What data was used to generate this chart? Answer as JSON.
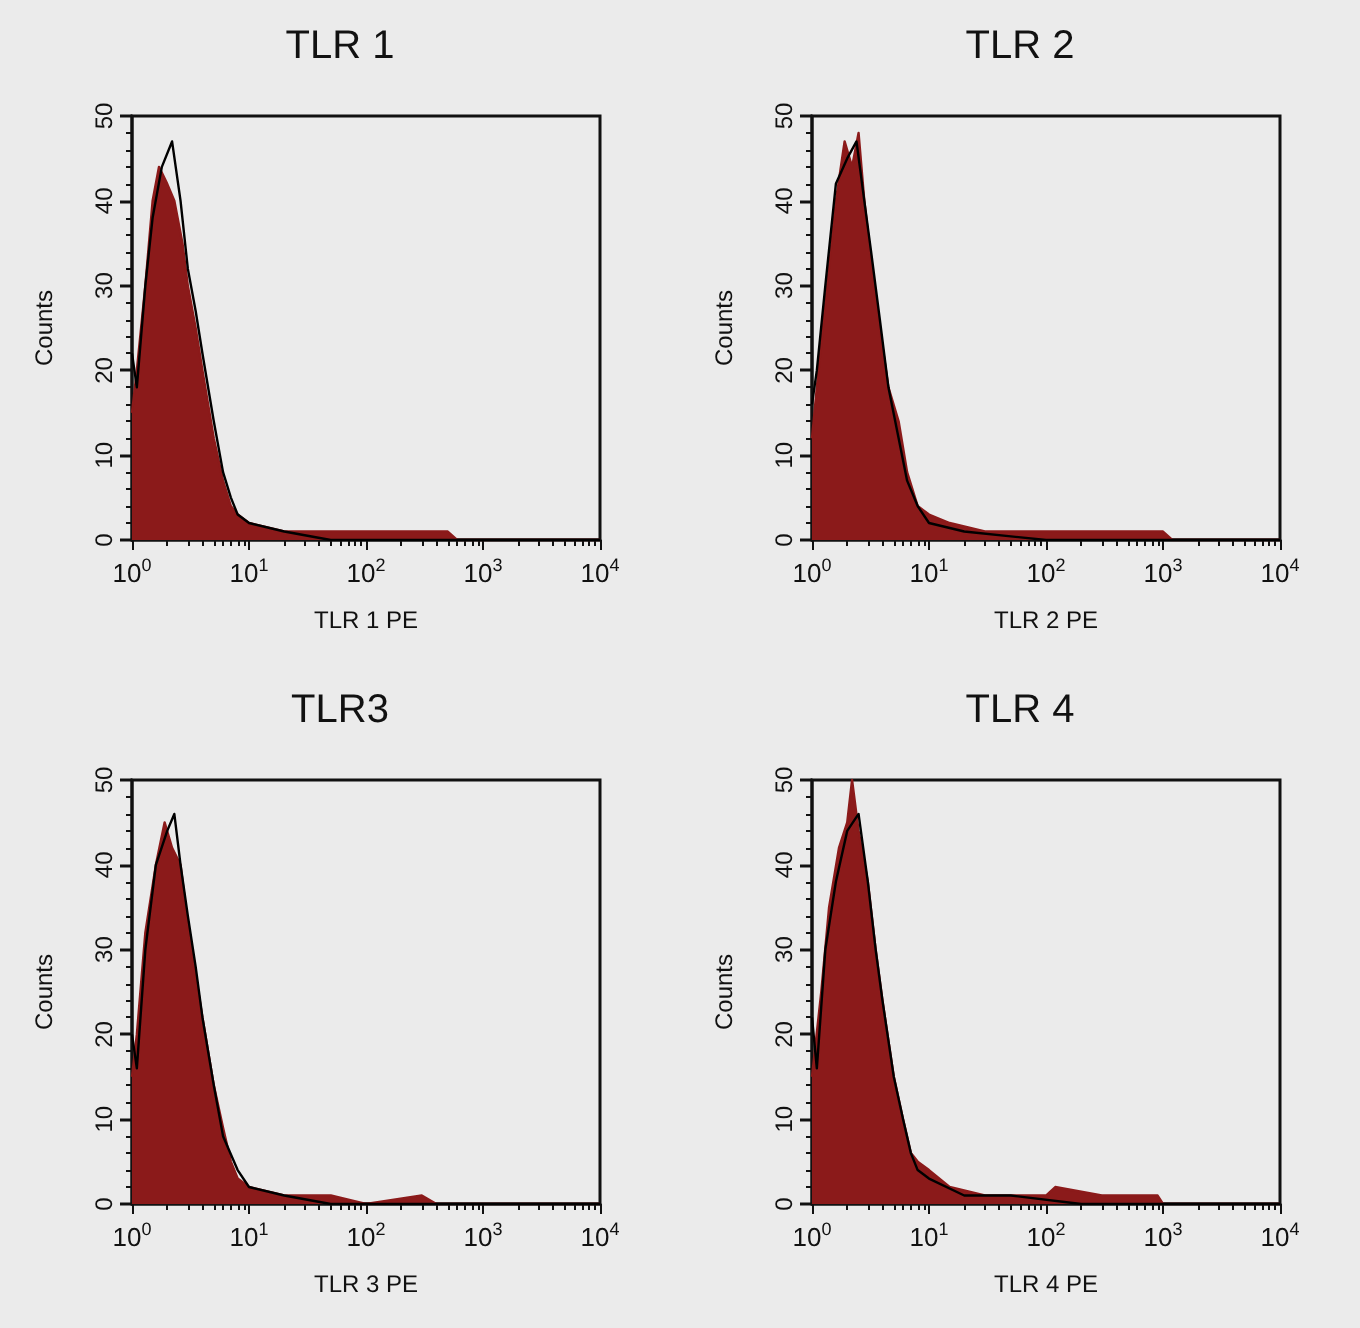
{
  "chart_data": [
    {
      "type": "area",
      "title": "TLR 1",
      "xlabel": "TLR 1 PE",
      "ylabel": "Counts",
      "log": "x",
      "xlim": [
        1,
        10000
      ],
      "xticks": [
        {
          "value": 1,
          "label": "10$^{0}$"
        },
        {
          "value": 10,
          "label": "10$^{1}$"
        },
        {
          "value": 100,
          "label": "10$^{2}$"
        },
        {
          "value": 1000,
          "label": "10$^{3}$"
        },
        {
          "value": 10000,
          "label": "10$^{4}$"
        }
      ],
      "ylim": [
        0,
        50
      ],
      "yticks": [
        0,
        10,
        20,
        30,
        40,
        50
      ],
      "grid": false,
      "marker": "none",
      "series": [
        {
          "color": "#8b1a1a",
          "x": [
            1,
            1.1,
            1.3,
            1.5,
            1.7,
            2,
            2.3,
            2.7,
            3,
            3.5,
            4,
            5,
            6,
            7,
            8,
            10,
            20,
            50,
            100,
            200,
            500,
            600,
            10000
          ],
          "values": [
            15,
            20,
            30,
            40,
            44,
            42,
            40,
            35,
            30,
            25,
            20,
            12,
            7,
            4,
            3,
            2,
            1,
            1,
            1,
            1,
            1,
            0,
            0
          ]
        },
        {
          "type": "line",
          "color": "#000000",
          "x": [
            1,
            1.1,
            1.3,
            1.5,
            1.8,
            2.2,
            2.6,
            3,
            3.5,
            4,
            5,
            6,
            7,
            8,
            10,
            20,
            50,
            10000
          ],
          "values": [
            22,
            18,
            30,
            38,
            44,
            47,
            40,
            32,
            27,
            22,
            14,
            8,
            5,
            3,
            2,
            1,
            0,
            0
          ]
        }
      ]
    },
    {
      "type": "area",
      "title": "TLR 2",
      "xlabel": "TLR 2 PE",
      "ylabel": "Counts",
      "log": "x",
      "xlim": [
        1,
        10000
      ],
      "xticks": [
        {
          "value": 1,
          "label": "10$^{0}$"
        },
        {
          "value": 10,
          "label": "10$^{1}$"
        },
        {
          "value": 100,
          "label": "10$^{2}$"
        },
        {
          "value": 1000,
          "label": "10$^{3}$"
        },
        {
          "value": 10000,
          "label": "10$^{4}$"
        }
      ],
      "ylim": [
        0,
        50
      ],
      "yticks": [
        0,
        10,
        20,
        30,
        40,
        50
      ],
      "grid": false,
      "marker": "none",
      "series": [
        {
          "color": "#8b1a1a",
          "x": [
            1,
            1.1,
            1.3,
            1.6,
            1.9,
            2.2,
            2.5,
            2.8,
            3.2,
            3.8,
            4.5,
            5.5,
            6.5,
            8,
            10,
            15,
            30,
            100,
            300,
            1000,
            1200,
            10000
          ],
          "values": [
            12,
            18,
            28,
            40,
            47,
            44,
            48,
            40,
            33,
            25,
            18,
            14,
            8,
            4,
            3,
            2,
            1,
            1,
            1,
            1,
            0,
            0
          ]
        },
        {
          "type": "line",
          "color": "#000000",
          "x": [
            1,
            1.1,
            1.3,
            1.6,
            2,
            2.4,
            2.8,
            3.2,
            3.8,
            4.5,
            5.5,
            6.5,
            8,
            10,
            20,
            100,
            10000
          ],
          "values": [
            16,
            20,
            30,
            42,
            45,
            47,
            40,
            34,
            26,
            18,
            12,
            7,
            4,
            2,
            1,
            0,
            0
          ]
        }
      ]
    },
    {
      "type": "area",
      "title": "TLR3",
      "xlabel": "TLR 3 PE",
      "ylabel": "Counts",
      "log": "x",
      "xlim": [
        1,
        10000
      ],
      "xticks": [
        {
          "value": 1,
          "label": "10$^{0}$"
        },
        {
          "value": 10,
          "label": "10$^{1}$"
        },
        {
          "value": 100,
          "label": "10$^{2}$"
        },
        {
          "value": 1000,
          "label": "10$^{3}$"
        },
        {
          "value": 10000,
          "label": "10$^{4}$"
        }
      ],
      "ylim": [
        0,
        50
      ],
      "yticks": [
        0,
        10,
        20,
        30,
        40,
        50
      ],
      "grid": false,
      "marker": "none",
      "series": [
        {
          "color": "#8b1a1a",
          "x": [
            1,
            1.1,
            1.3,
            1.6,
            1.9,
            2.2,
            2.6,
            3,
            3.5,
            4,
            5,
            6,
            7,
            8,
            10,
            20,
            50,
            100,
            300,
            400,
            10000
          ],
          "values": [
            15,
            20,
            32,
            40,
            45,
            42,
            40,
            33,
            27,
            22,
            14,
            9,
            5,
            3,
            2,
            1,
            1,
            0,
            1,
            0,
            0
          ]
        },
        {
          "type": "line",
          "color": "#000000",
          "x": [
            1,
            1.1,
            1.3,
            1.6,
            2,
            2.3,
            2.6,
            3,
            3.5,
            4,
            5,
            6,
            8,
            10,
            20,
            50,
            10000
          ],
          "values": [
            20,
            16,
            30,
            40,
            44,
            46,
            40,
            34,
            28,
            22,
            14,
            8,
            4,
            2,
            1,
            0,
            0
          ]
        }
      ]
    },
    {
      "type": "area",
      "title": "TLR 4",
      "xlabel": "TLR 4 PE",
      "ylabel": "Counts",
      "log": "x",
      "xlim": [
        1,
        10000
      ],
      "xticks": [
        {
          "value": 1,
          "label": "10$^{0}$"
        },
        {
          "value": 10,
          "label": "10$^{1}$"
        },
        {
          "value": 100,
          "label": "10$^{2}$"
        },
        {
          "value": 1000,
          "label": "10$^{3}$"
        },
        {
          "value": 10000,
          "label": "10$^{4}$"
        }
      ],
      "ylim": [
        0,
        50
      ],
      "yticks": [
        0,
        10,
        20,
        30,
        40,
        50
      ],
      "grid": false,
      "marker": "none",
      "series": [
        {
          "color": "#8b1a1a",
          "x": [
            1,
            1.2,
            1.4,
            1.7,
            2,
            2.2,
            2.5,
            3,
            3.5,
            4,
            5,
            6,
            7,
            8,
            10,
            15,
            30,
            100,
            120,
            300,
            900,
            1000,
            10000
          ],
          "values": [
            15,
            25,
            35,
            42,
            45,
            50,
            44,
            38,
            30,
            24,
            15,
            10,
            6,
            5,
            4,
            2,
            1,
            1,
            2,
            1,
            1,
            0,
            0
          ]
        },
        {
          "type": "line",
          "color": "#000000",
          "x": [
            1,
            1.1,
            1.3,
            1.6,
            2,
            2.5,
            3,
            3.5,
            4,
            5,
            6,
            7,
            8,
            10,
            20,
            50,
            200,
            10000
          ],
          "values": [
            22,
            16,
            30,
            38,
            44,
            46,
            38,
            30,
            24,
            15,
            10,
            6,
            4,
            3,
            1,
            1,
            0,
            0
          ]
        }
      ]
    }
  ]
}
